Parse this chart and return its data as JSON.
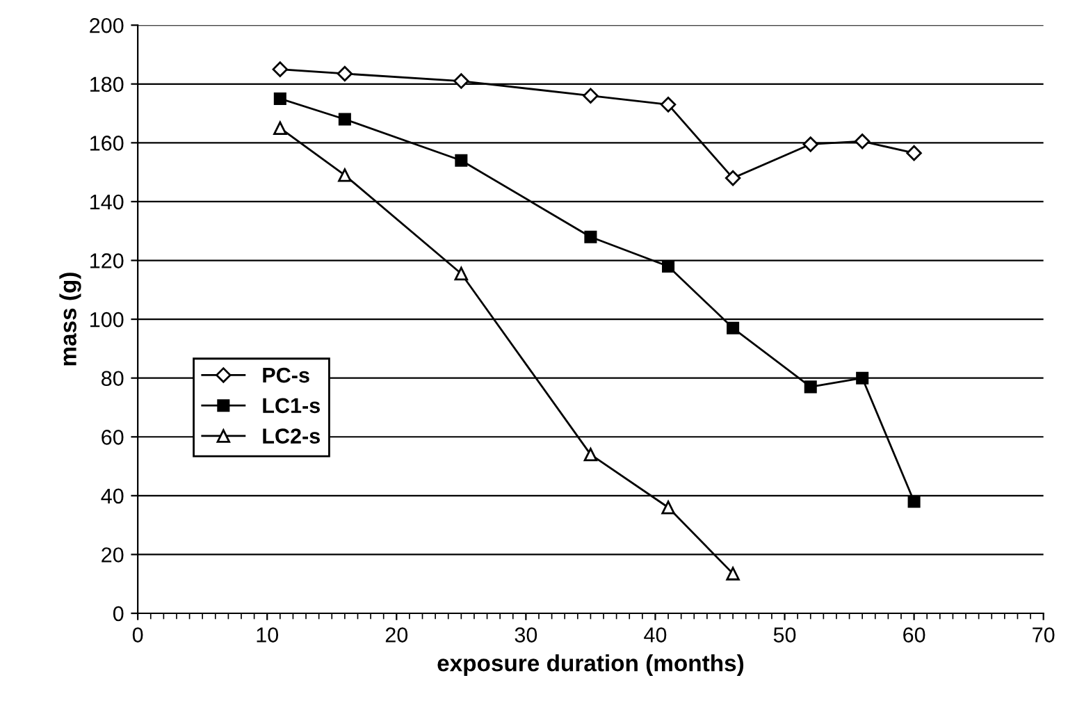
{
  "chart_data": {
    "type": "line",
    "xlabel": "exposure duration (months)",
    "ylabel": "mass (g)",
    "xlim": [
      0,
      70
    ],
    "xticks": [
      0,
      10,
      20,
      30,
      40,
      50,
      60,
      70
    ],
    "ylim": [
      0,
      200
    ],
    "yticks": [
      0,
      20,
      40,
      60,
      80,
      100,
      120,
      140,
      160,
      180,
      200
    ],
    "grid": "y",
    "legend": "center left",
    "series": [
      {
        "name": "PC-s",
        "color": "#000000",
        "marker": "diamond",
        "x": [
          11,
          16,
          25,
          35,
          41,
          46,
          52,
          56,
          60
        ],
        "values": [
          185,
          183.5,
          181,
          176,
          173,
          148,
          159.5,
          160.5,
          156.5
        ]
      },
      {
        "name": "LC1-s",
        "color": "#000000",
        "marker": "square",
        "x": [
          11,
          16,
          25,
          35,
          41,
          46,
          52,
          56,
          60
        ],
        "values": [
          175,
          168,
          154,
          128,
          118,
          97,
          77,
          80,
          38
        ]
      },
      {
        "name": "LC2-s",
        "color": "#000000",
        "marker": "triangle",
        "x": [
          11,
          16,
          25,
          35,
          41,
          46
        ],
        "values": [
          165,
          149,
          115.5,
          54,
          36,
          13.5
        ]
      }
    ]
  }
}
